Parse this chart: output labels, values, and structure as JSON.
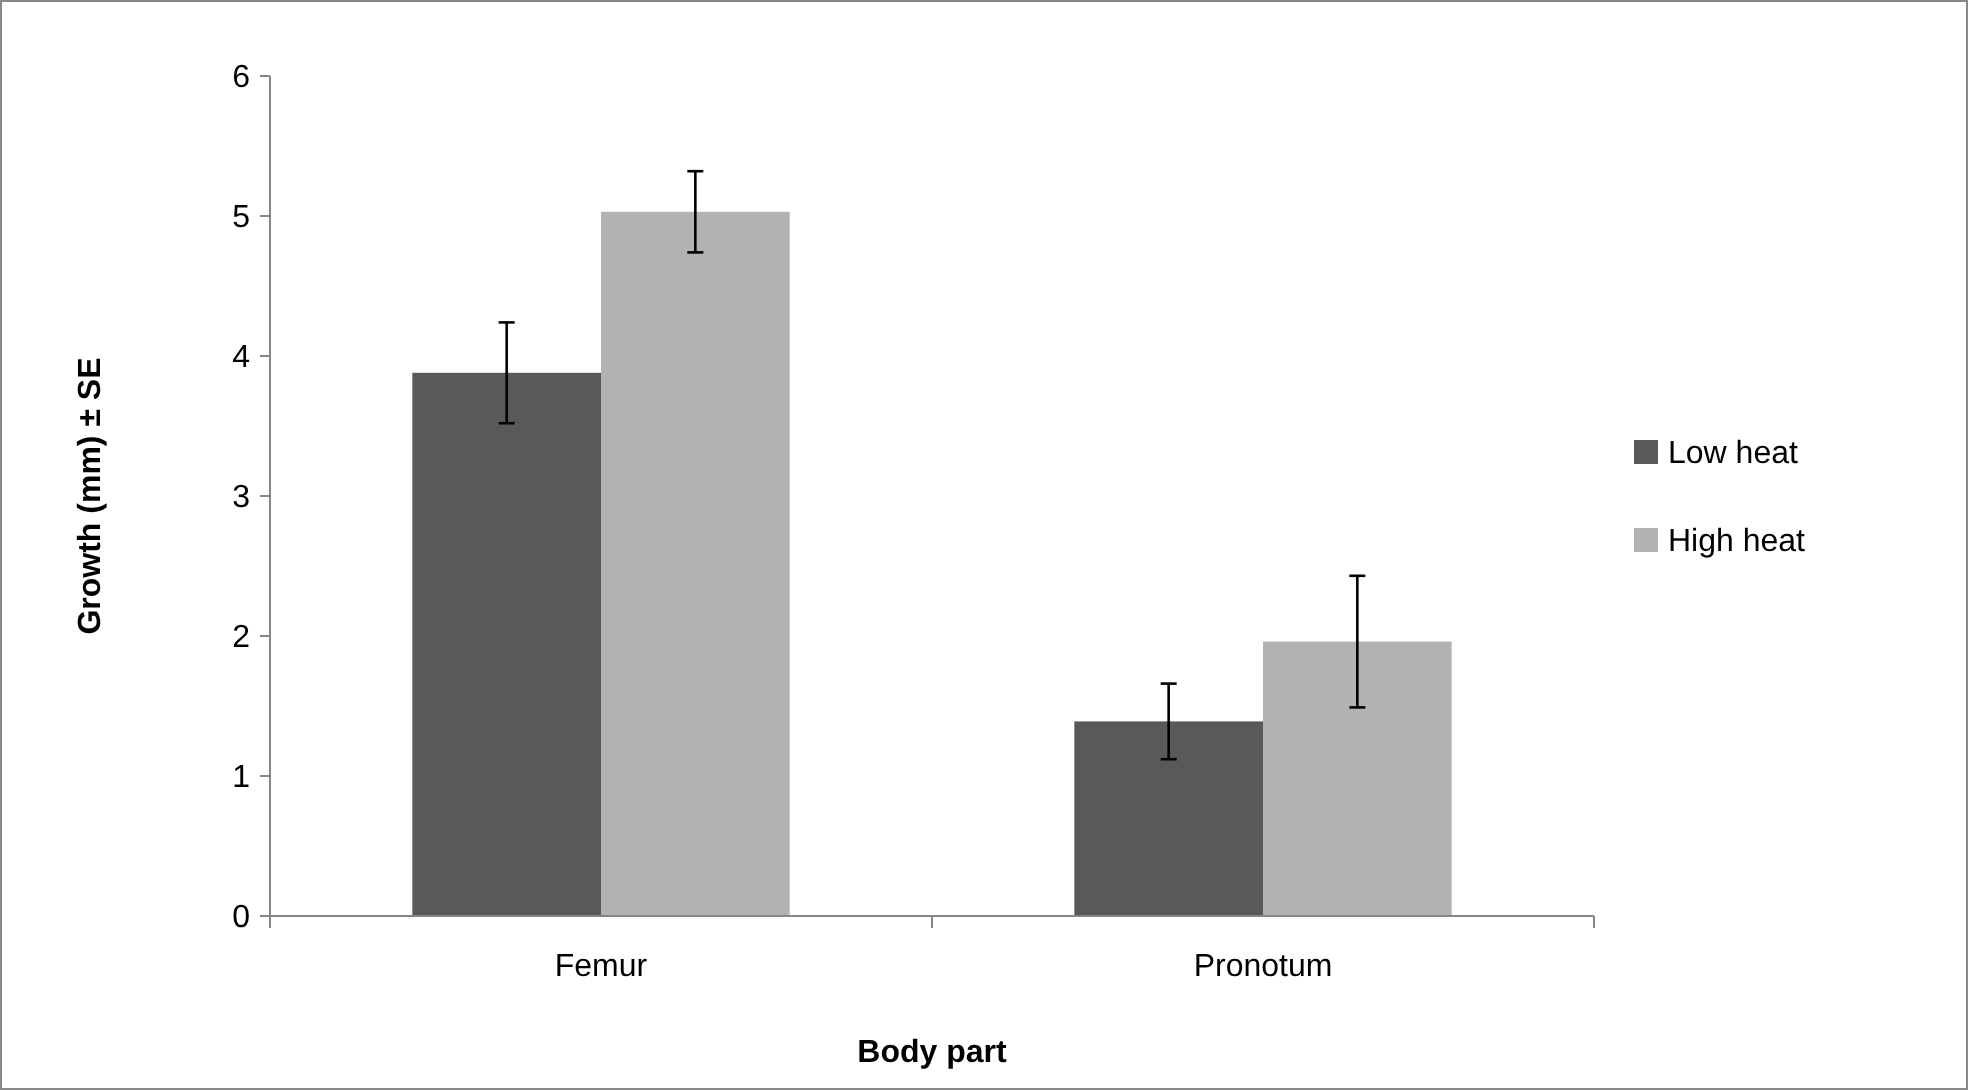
{
  "chart_data": {
    "type": "bar",
    "xlabel": "Body part",
    "ylabel": "Growth (mm) ± SE",
    "categories": [
      "Femur",
      "Pronotum"
    ],
    "series": [
      {
        "name": "Low heat",
        "color": "#595959",
        "values": [
          3.88,
          1.39
        ],
        "errors": [
          0.36,
          0.27
        ]
      },
      {
        "name": "High heat",
        "color": "#b2b2b2",
        "values": [
          5.03,
          1.96
        ],
        "errors": [
          0.29,
          0.47
        ]
      }
    ],
    "ylim": [
      0,
      6
    ],
    "yticks": [
      0,
      1,
      2,
      3,
      4,
      5,
      6
    ],
    "grid": false,
    "legend": "right"
  }
}
